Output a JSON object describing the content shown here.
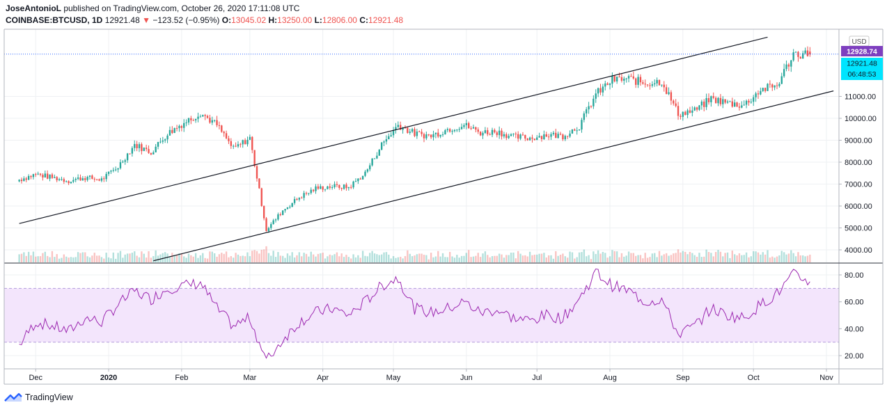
{
  "header": {
    "author": "JoseAntonioL",
    "published_text": " published on TradingView.com, October 26, 2020 17:11:08 UTC",
    "symbol": "COINBASE:BTCUSD, 1D",
    "last": "12921.48",
    "change_arrow": "▼",
    "change": "−123.52 (−0.95%)",
    "o_label": "O:",
    "o_value": "13045.02",
    "h_label": "H:",
    "h_value": "13250.00",
    "l_label": "L:",
    "l_value": "12806.00",
    "c_label": "C:",
    "c_value": "12921.48"
  },
  "price_scale": {
    "currency": "USD",
    "badge_price": "12928.74",
    "badge_last": "12921.48",
    "badge_countdown": "06:48:53"
  },
  "footer": {
    "brand": "TradingView"
  },
  "colors": {
    "up": "#26a69a",
    "down": "#ef5350",
    "rsi_line": "#9c27b0",
    "rsi_band": "#f3e5fc",
    "badge_purple": "#7e3fbf",
    "badge_cyan": "#00e5ff",
    "price_line": "#2962ff"
  },
  "chart_data": [
    {
      "type": "candlestick",
      "title": "COINBASE:BTCUSD, 1D",
      "x_tick_labels": [
        "Dec",
        "2020",
        "Feb",
        "Mar",
        "Apr",
        "May",
        "Jun",
        "Jul",
        "Aug",
        "Sep",
        "Oct",
        "Nov"
      ],
      "y_tick_labels": [
        "4000.00",
        "5000.00",
        "6000.00",
        "7000.00",
        "8000.00",
        "9000.00",
        "10000.00",
        "11000.00"
      ],
      "ylim": [
        3500,
        13700
      ],
      "grid": true,
      "close_weekly": [
        [
          "2019-11-24",
          7200
        ],
        [
          "2019-12-01",
          7450
        ],
        [
          "2019-12-08",
          7300
        ],
        [
          "2019-12-15",
          7150
        ],
        [
          "2019-12-22",
          7300
        ],
        [
          "2019-12-29",
          7200
        ],
        [
          "2020-01-05",
          7800
        ],
        [
          "2020-01-12",
          8800
        ],
        [
          "2020-01-19",
          8450
        ],
        [
          "2020-01-26",
          9300
        ],
        [
          "2020-02-02",
          9800
        ],
        [
          "2020-02-09",
          10250
        ],
        [
          "2020-02-16",
          9700
        ],
        [
          "2020-02-23",
          8600
        ],
        [
          "2020-03-01",
          9100
        ],
        [
          "2020-03-08",
          4900
        ],
        [
          "2020-03-15",
          5800
        ],
        [
          "2020-03-22",
          6400
        ],
        [
          "2020-03-29",
          6800
        ],
        [
          "2020-04-05",
          6900
        ],
        [
          "2020-04-12",
          6850
        ],
        [
          "2020-04-19",
          7500
        ],
        [
          "2020-04-26",
          8800
        ],
        [
          "2020-05-03",
          9700
        ],
        [
          "2020-05-10",
          9300
        ],
        [
          "2020-05-17",
          9200
        ],
        [
          "2020-05-24",
          9500
        ],
        [
          "2020-05-31",
          9700
        ],
        [
          "2020-06-07",
          9350
        ],
        [
          "2020-06-14",
          9400
        ],
        [
          "2020-06-21",
          9150
        ],
        [
          "2020-06-28",
          9100
        ],
        [
          "2020-07-05",
          9250
        ],
        [
          "2020-07-12",
          9200
        ],
        [
          "2020-07-19",
          9650
        ],
        [
          "2020-07-26",
          11100
        ],
        [
          "2020-08-02",
          11750
        ],
        [
          "2020-08-09",
          11800
        ],
        [
          "2020-08-16",
          11600
        ],
        [
          "2020-08-23",
          11700
        ],
        [
          "2020-08-30",
          10200
        ],
        [
          "2020-09-06",
          10350
        ],
        [
          "2020-09-13",
          10900
        ],
        [
          "2020-09-20",
          10700
        ],
        [
          "2020-09-27",
          10600
        ],
        [
          "2020-10-04",
          11300
        ],
        [
          "2020-10-11",
          11500
        ],
        [
          "2020-10-18",
          12950
        ],
        [
          "2020-10-25",
          12921.48
        ]
      ],
      "last_candle": {
        "open": 13045.02,
        "high": 13250.0,
        "low": 12806.0,
        "close": 12921.48
      },
      "channel_lines": [
        {
          "from": [
            "2019-11-24",
            5200
          ],
          "to": [
            "2020-10-07",
            13700
          ]
        },
        {
          "from": [
            "2020-01-20",
            3500
          ],
          "to": [
            "2020-11-04",
            11250
          ]
        }
      ]
    },
    {
      "type": "line",
      "name": "RSI",
      "y_tick_labels": [
        "20.00",
        "40.00",
        "60.00",
        "80.00"
      ],
      "ylim": [
        15,
        88
      ],
      "band": [
        30,
        70
      ],
      "values_weekly": [
        [
          "2019-11-24",
          28
        ],
        [
          "2019-12-01",
          45
        ],
        [
          "2019-12-08",
          42
        ],
        [
          "2019-12-15",
          38
        ],
        [
          "2019-12-22",
          48
        ],
        [
          "2019-12-29",
          45
        ],
        [
          "2020-01-05",
          58
        ],
        [
          "2020-01-12",
          68
        ],
        [
          "2020-01-19",
          62
        ],
        [
          "2020-01-26",
          70
        ],
        [
          "2020-02-02",
          72
        ],
        [
          "2020-02-09",
          74
        ],
        [
          "2020-02-16",
          55
        ],
        [
          "2020-02-23",
          42
        ],
        [
          "2020-03-01",
          48
        ],
        [
          "2020-03-08",
          16
        ],
        [
          "2020-03-15",
          32
        ],
        [
          "2020-03-22",
          45
        ],
        [
          "2020-03-29",
          52
        ],
        [
          "2020-04-05",
          55
        ],
        [
          "2020-04-12",
          50
        ],
        [
          "2020-04-19",
          60
        ],
        [
          "2020-04-26",
          72
        ],
        [
          "2020-05-03",
          78
        ],
        [
          "2020-05-10",
          55
        ],
        [
          "2020-05-17",
          52
        ],
        [
          "2020-05-24",
          55
        ],
        [
          "2020-05-31",
          60
        ],
        [
          "2020-06-07",
          52
        ],
        [
          "2020-06-14",
          54
        ],
        [
          "2020-06-21",
          48
        ],
        [
          "2020-06-28",
          46
        ],
        [
          "2020-07-05",
          50
        ],
        [
          "2020-07-12",
          48
        ],
        [
          "2020-07-19",
          62
        ],
        [
          "2020-07-26",
          82
        ],
        [
          "2020-08-02",
          72
        ],
        [
          "2020-08-09",
          68
        ],
        [
          "2020-08-16",
          60
        ],
        [
          "2020-08-23",
          62
        ],
        [
          "2020-08-30",
          36
        ],
        [
          "2020-09-06",
          42
        ],
        [
          "2020-09-13",
          55
        ],
        [
          "2020-09-20",
          50
        ],
        [
          "2020-09-27",
          48
        ],
        [
          "2020-10-04",
          58
        ],
        [
          "2020-10-11",
          66
        ],
        [
          "2020-10-18",
          80
        ],
        [
          "2020-10-25",
          75
        ]
      ]
    }
  ]
}
